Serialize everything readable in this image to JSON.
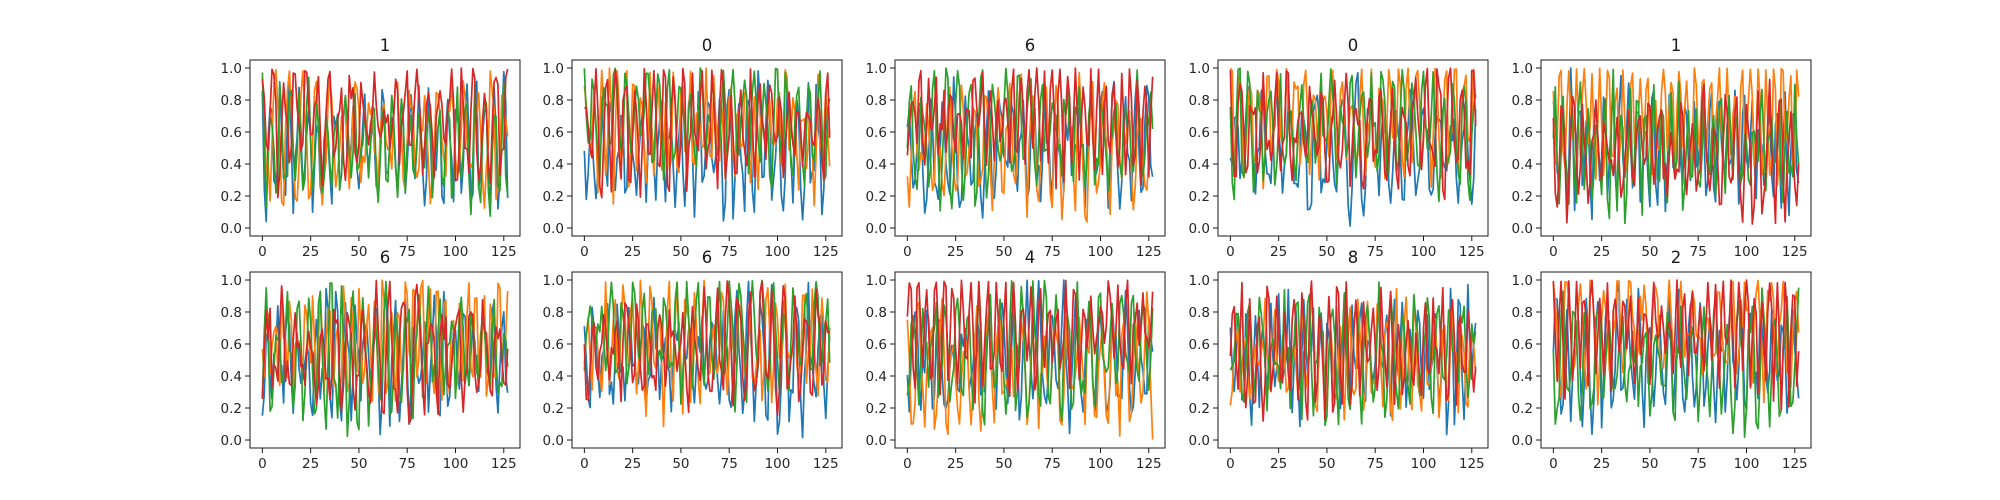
{
  "chart_data": {
    "type": "line",
    "grid": false,
    "layout": {
      "rows": 2,
      "cols": 5
    },
    "colors": [
      "#1f77b4",
      "#ff7f0e",
      "#2ca02c",
      "#d62728"
    ],
    "x_ticks": [
      0,
      25,
      50,
      75,
      100,
      125
    ],
    "y_ticks": [
      0.0,
      0.2,
      0.4,
      0.6,
      0.8,
      1.0
    ],
    "x_tick_labels": [
      "0",
      "25",
      "50",
      "75",
      "100",
      "125"
    ],
    "y_tick_labels": [
      "0.0",
      "0.2",
      "0.4",
      "0.6",
      "0.8",
      "1.0"
    ],
    "xlim": [
      -6.4,
      133.4
    ],
    "ylim": [
      -0.05,
      1.05
    ],
    "points_per_series": 128,
    "panels": [
      {
        "title": "1",
        "seed": 11
      },
      {
        "title": "0",
        "seed": 23
      },
      {
        "title": "6",
        "seed": 37
      },
      {
        "title": "0",
        "seed": 41
      },
      {
        "title": "1",
        "seed": 53
      },
      {
        "title": "6",
        "seed": 67
      },
      {
        "title": "6",
        "seed": 71
      },
      {
        "title": "4",
        "seed": 83
      },
      {
        "title": "8",
        "seed": 97
      },
      {
        "title": "2",
        "seed": 101
      }
    ]
  }
}
